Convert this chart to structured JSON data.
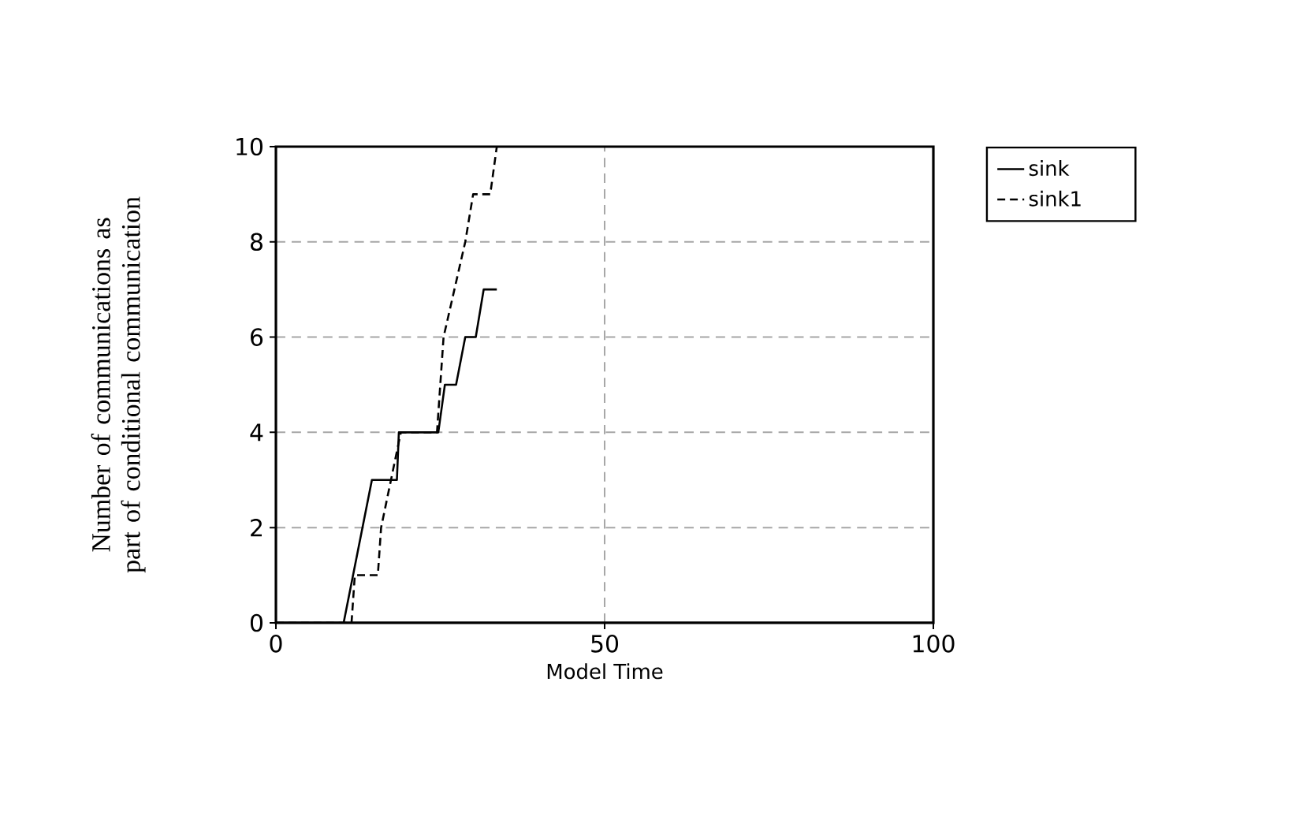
{
  "chart_data": {
    "type": "line",
    "xlabel": "Model Time",
    "ylabel": "Number of communications as part of conditional communication",
    "xlim": [
      0,
      100
    ],
    "ylim": [
      0,
      10
    ],
    "xticks": [
      0,
      50,
      100
    ],
    "yticks": [
      0,
      2,
      4,
      6,
      8,
      10
    ],
    "grid": true,
    "legend": "top right",
    "series": [
      {
        "name": "sink",
        "color": "#000000",
        "line_style": "solid",
        "x": [
          0,
          10.3,
          14.6,
          18.4,
          18.7,
          24.7,
          25.7,
          27.4,
          28.8,
          30.4,
          31.6,
          33.6
        ],
        "values": [
          0,
          0,
          3,
          3,
          4,
          4,
          5,
          5,
          6,
          6,
          7,
          7
        ]
      },
      {
        "name": "sink1",
        "color": "#000000",
        "line_style": "dashed",
        "x": [
          0,
          11.5,
          12,
          15.5,
          16,
          17.5,
          19,
          24.5,
          25.5,
          28.8,
          30,
          32.6,
          33.6
        ],
        "values": [
          0,
          0,
          1,
          1,
          2,
          3,
          4,
          4,
          6,
          8,
          9,
          9,
          10
        ]
      }
    ]
  }
}
